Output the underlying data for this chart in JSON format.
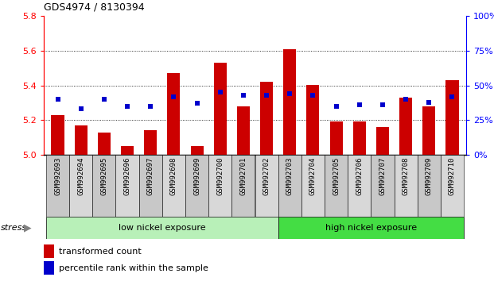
{
  "title": "GDS4974 / 8130394",
  "samples": [
    "GSM992693",
    "GSM992694",
    "GSM992695",
    "GSM992696",
    "GSM992697",
    "GSM992698",
    "GSM992699",
    "GSM992700",
    "GSM992701",
    "GSM992702",
    "GSM992703",
    "GSM992704",
    "GSM992705",
    "GSM992706",
    "GSM992707",
    "GSM992708",
    "GSM992709",
    "GSM992710"
  ],
  "red_values": [
    5.23,
    5.17,
    5.13,
    5.05,
    5.14,
    5.47,
    5.05,
    5.53,
    5.28,
    5.42,
    5.61,
    5.4,
    5.19,
    5.19,
    5.16,
    5.33,
    5.28,
    5.43
  ],
  "blue_values": [
    40,
    33,
    40,
    35,
    35,
    42,
    37,
    45,
    43,
    43,
    44,
    43,
    35,
    36,
    36,
    40,
    38,
    42
  ],
  "ylim_left": [
    5.0,
    5.8
  ],
  "ylim_right": [
    0,
    100
  ],
  "yticks_left": [
    5.0,
    5.2,
    5.4,
    5.6,
    5.8
  ],
  "yticks_right": [
    0,
    25,
    50,
    75,
    100
  ],
  "ytick_labels_right": [
    "0%",
    "25%",
    "50%",
    "75%",
    "100%"
  ],
  "group1_label": "low nickel exposure",
  "group2_label": "high nickel exposure",
  "group1_count": 10,
  "group2_count": 8,
  "stress_label": "stress",
  "legend1": "transformed count",
  "legend2": "percentile rank within the sample",
  "red_color": "#cc0000",
  "blue_color": "#0000cc",
  "base": 5.0,
  "bar_width": 0.55,
  "light_green": "#b8f0b8",
  "bright_green": "#44dd44",
  "label_bg_even": "#c8c8c8",
  "label_bg_odd": "#d8d8d8"
}
